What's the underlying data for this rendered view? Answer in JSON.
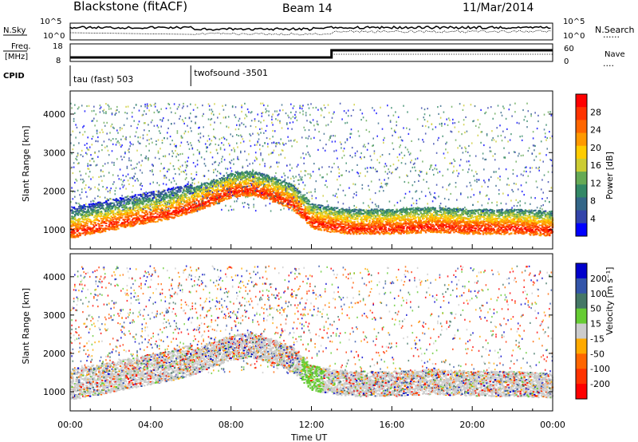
{
  "header": {
    "title": "Blackstone (fitACF)",
    "beam": "Beam 14",
    "date": "11/Mar/2014"
  },
  "top_panels": {
    "nsky_label": "N.Sky",
    "nsearch_label": "N.Search",
    "nsearch_dots": "......",
    "n_ticks": [
      "10^5",
      "10^0"
    ],
    "freq_label_1": "Freq.",
    "freq_label_2": "[MHz]",
    "freq_ticks": [
      "18",
      "8"
    ],
    "nave_label": "Nave",
    "nave_dots": "....",
    "nave_ticks": [
      "60",
      "0"
    ],
    "cpid_label": "CPID",
    "cpid_segments": [
      {
        "name": "tau (fast) 503",
        "start_hour": 0
      },
      {
        "name": "twofsound -3501",
        "start_hour": 6
      }
    ],
    "freq_step_hour": 13
  },
  "panels": {
    "power": {
      "colorbar_label": "Power [dB]",
      "ticks": [
        "28",
        "24",
        "20",
        "16",
        "12",
        "8",
        "4"
      ]
    },
    "velocity": {
      "colorbar_label": "Velocity [m s⁻¹]",
      "ticks": [
        "200",
        "100",
        "50",
        "15",
        "-15",
        "-50",
        "-100",
        "-200"
      ]
    },
    "colors": {
      "power": [
        "#ff0000",
        "#ff3300",
        "#ff6600",
        "#ff9900",
        "#ffcc00",
        "#cccc33",
        "#66aa55",
        "#338866",
        "#336688",
        "#3344aa",
        "#0000ff"
      ],
      "velocity": [
        "#0000cc",
        "#3355aa",
        "#447766",
        "#66cc33",
        "#cccccc",
        "#ffaa00",
        "#ff6600",
        "#ff3300",
        "#ff0000"
      ]
    }
  },
  "chart_data": [
    {
      "type": "heatmap",
      "title": "Power",
      "xlabel": "Time UT",
      "ylabel": "Slant Range [km]",
      "xlim": [
        0,
        24
      ],
      "ylim": [
        500,
        4600
      ],
      "x_ticks": [
        "00:00",
        "04:00",
        "08:00",
        "12:00",
        "16:00",
        "20:00",
        "00:00"
      ],
      "y_ticks": [
        "1000",
        "2000",
        "3000",
        "4000"
      ],
      "colorbar": {
        "label": "Power [dB]",
        "range": [
          0,
          30
        ],
        "ticks": [
          28,
          24,
          20,
          16,
          12,
          8,
          4
        ]
      },
      "series": [
        {
          "x": [
            0,
            1,
            2,
            3,
            4,
            5,
            6,
            7,
            8,
            9,
            10,
            11,
            12,
            13,
            14,
            16,
            18,
            20,
            22,
            24
          ],
          "y": [
            950,
            1050,
            1150,
            1250,
            1350,
            1450,
            1600,
            1800,
            2000,
            2050,
            1900,
            1700,
            1200,
            1100,
            1050,
            1050,
            1100,
            1050,
            1050,
            1000
          ]
        }
      ]
    },
    {
      "type": "heatmap",
      "title": "Velocity",
      "xlabel": "Time UT",
      "ylabel": "Slant Range [km]",
      "xlim": [
        0,
        24
      ],
      "ylim": [
        500,
        4600
      ],
      "x_ticks": [
        "00:00",
        "04:00",
        "08:00",
        "12:00",
        "16:00",
        "20:00",
        "00:00"
      ],
      "y_ticks": [
        "1000",
        "2000",
        "3000",
        "4000"
      ],
      "colorbar": {
        "label": "Velocity [m s⁻¹]",
        "range": [
          -250,
          250
        ],
        "ticks": [
          200,
          100,
          50,
          15,
          -15,
          -50,
          -100,
          -200
        ]
      }
    }
  ]
}
